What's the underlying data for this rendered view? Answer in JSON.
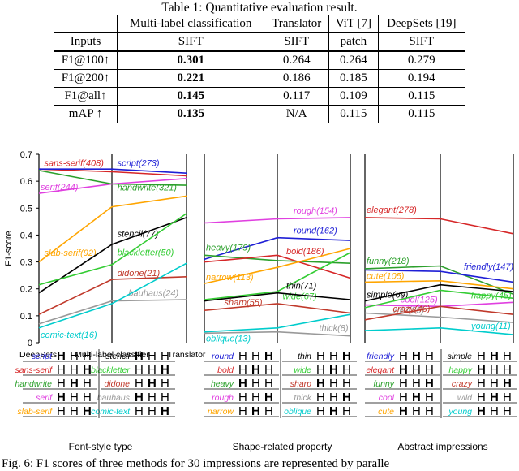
{
  "table": {
    "caption": "Table 1: Quantitative evaluation result.",
    "header_methods": [
      "",
      "Multi-label classification",
      "Translator",
      "ViT [7]",
      "DeepSets [19]"
    ],
    "inputs_row": [
      "Inputs",
      "SIFT",
      "SIFT",
      "patch",
      "SIFT"
    ],
    "rows": [
      {
        "metric": "F1@100↑",
        "values": [
          "0.301",
          "0.264",
          "0.264",
          "0.279"
        ]
      },
      {
        "metric": "F1@200↑",
        "values": [
          "0.221",
          "0.186",
          "0.185",
          "0.194"
        ]
      },
      {
        "metric": "F1@all↑",
        "values": [
          "0.145",
          "0.117",
          "0.109",
          "0.115"
        ]
      },
      {
        "metric": "mAP ↑",
        "values": [
          "0.135",
          "N/A",
          "0.115",
          "0.115"
        ]
      }
    ],
    "bold_column": 0
  },
  "chart_data": [
    {
      "type": "line",
      "title": "Font-style type",
      "ylabel": "F1-score",
      "ylim": [
        0,
        0.7
      ],
      "yticks": [
        "0",
        "0.1",
        "0.2",
        "0.3",
        "0.4",
        "0.5",
        "0.6",
        "0.7"
      ],
      "categories": [
        "DeepSets",
        "Multi-label classifier",
        "Translator"
      ],
      "series": [
        {
          "name": "sans-serif(408)",
          "color": "#d62728",
          "values": [
            0.645,
            0.635,
            0.62
          ]
        },
        {
          "name": "script(273)",
          "color": "#1f1fd6",
          "values": [
            0.645,
            0.645,
            0.63
          ]
        },
        {
          "name": "handwrite(321)",
          "color": "#2ca02c",
          "values": [
            0.64,
            0.59,
            0.585
          ]
        },
        {
          "name": "serif(244)",
          "color": "#e040e0",
          "values": [
            0.555,
            0.59,
            0.61
          ]
        },
        {
          "name": "slab-serif(92)",
          "color": "#ffa500",
          "values": [
            0.3,
            0.505,
            0.545
          ]
        },
        {
          "name": "stencil(77)",
          "color": "#000000",
          "values": [
            0.185,
            0.365,
            0.465
          ]
        },
        {
          "name": "blackletter(50)",
          "color": "#33cc33",
          "values": [
            0.215,
            0.29,
            0.48
          ]
        },
        {
          "name": "didone(21)",
          "color": "#c0392b",
          "values": [
            0.105,
            0.235,
            0.245
          ]
        },
        {
          "name": "bauhaus(24)",
          "color": "#999999",
          "values": [
            0.07,
            0.155,
            0.16
          ]
        },
        {
          "name": "comic-text(16)",
          "color": "#00cccc",
          "values": [
            0.055,
            0.145,
            0.295
          ]
        }
      ]
    },
    {
      "type": "line",
      "title": "Shape-related property",
      "series": [
        {
          "name": "rough(154)",
          "color": "#e040e0",
          "values": [
            0.445,
            0.46,
            0.465
          ]
        },
        {
          "name": "round(162)",
          "color": "#1f1fd6",
          "values": [
            0.31,
            0.39,
            0.38
          ]
        },
        {
          "name": "heavy(179)",
          "color": "#2ca02c",
          "values": [
            0.325,
            0.305,
            0.295
          ]
        },
        {
          "name": "bold(186)",
          "color": "#d62728",
          "values": [
            0.3,
            0.325,
            0.24
          ]
        },
        {
          "name": "narrow(113)",
          "color": "#ffa500",
          "values": [
            0.22,
            0.28,
            0.35
          ]
        },
        {
          "name": "wide(67)",
          "color": "#33cc33",
          "values": [
            0.16,
            0.19,
            0.335
          ]
        },
        {
          "name": "thin(71)",
          "color": "#000000",
          "values": [
            0.155,
            0.185,
            0.16
          ]
        },
        {
          "name": "sharp(55)",
          "color": "#c0392b",
          "values": [
            0.12,
            0.145,
            0.11
          ]
        },
        {
          "name": "oblique(13)",
          "color": "#00cccc",
          "values": [
            0.04,
            0.055,
            0.105
          ]
        },
        {
          "name": "thick(8)",
          "color": "#999999",
          "values": [
            0.035,
            0.04,
            0.025
          ]
        }
      ]
    },
    {
      "type": "line",
      "title": "Abstract impressions",
      "series": [
        {
          "name": "elegant(278)",
          "color": "#d62728",
          "values": [
            0.465,
            0.46,
            0.405
          ]
        },
        {
          "name": "funny(218)",
          "color": "#2ca02c",
          "values": [
            0.275,
            0.285,
            0.18
          ]
        },
        {
          "name": "friendly(147)",
          "color": "#1f1fd6",
          "values": [
            0.27,
            0.265,
            0.225
          ]
        },
        {
          "name": "cute(105)",
          "color": "#ffa500",
          "values": [
            0.225,
            0.23,
            0.2
          ]
        },
        {
          "name": "simple(69)",
          "color": "#000000",
          "values": [
            0.155,
            0.215,
            0.19
          ]
        },
        {
          "name": "cool(125)",
          "color": "#e040e0",
          "values": [
            0.14,
            0.135,
            0.15
          ]
        },
        {
          "name": "happy(45)",
          "color": "#33cc33",
          "values": [
            0.13,
            0.195,
            0.165
          ]
        },
        {
          "name": "wild(35)",
          "color": "#999999",
          "values": [
            0.11,
            0.095,
            0.075
          ]
        },
        {
          "name": "crazy(46)",
          "color": "#c0392b",
          "values": [
            0.085,
            0.135,
            0.105
          ]
        },
        {
          "name": "young(11)",
          "color": "#00cccc",
          "values": [
            0.045,
            0.055,
            0.03
          ]
        }
      ]
    }
  ],
  "samples": {
    "groups": [
      {
        "left": [
          [
            "script",
            "#1f1fd6"
          ],
          [
            "sans-serif",
            "#d62728"
          ],
          [
            "handwrite",
            "#2ca02c"
          ],
          [
            "serif",
            "#e040e0"
          ],
          [
            "slab-serif",
            "#ffa500"
          ]
        ],
        "right": [
          [
            "stencil",
            "#000000"
          ],
          [
            "blackletter",
            "#33cc33"
          ],
          [
            "didone",
            "#c0392b"
          ],
          [
            "bauhaus",
            "#999999"
          ],
          [
            "comic-text",
            "#00cccc"
          ]
        ]
      },
      {
        "left": [
          [
            "round",
            "#1f1fd6"
          ],
          [
            "bold",
            "#d62728"
          ],
          [
            "heavy",
            "#2ca02c"
          ],
          [
            "rough",
            "#e040e0"
          ],
          [
            "narrow",
            "#ffa500"
          ]
        ],
        "right": [
          [
            "thin",
            "#000000"
          ],
          [
            "wide",
            "#33cc33"
          ],
          [
            "sharp",
            "#c0392b"
          ],
          [
            "thick",
            "#999999"
          ],
          [
            "oblique",
            "#00cccc"
          ]
        ]
      },
      {
        "left": [
          [
            "friendly",
            "#1f1fd6"
          ],
          [
            "elegant",
            "#d62728"
          ],
          [
            "funny",
            "#2ca02c"
          ],
          [
            "cool",
            "#e040e0"
          ],
          [
            "cute",
            "#ffa500"
          ]
        ],
        "right": [
          [
            "simple",
            "#000000"
          ],
          [
            "happy",
            "#33cc33"
          ],
          [
            "crazy",
            "#c0392b"
          ],
          [
            "wild",
            "#999999"
          ],
          [
            "young",
            "#00cccc"
          ]
        ]
      }
    ],
    "glyph": "H"
  },
  "figure_caption": "Fig. 6: F1 scores of three methods for 30 impressions are represented by paralle"
}
